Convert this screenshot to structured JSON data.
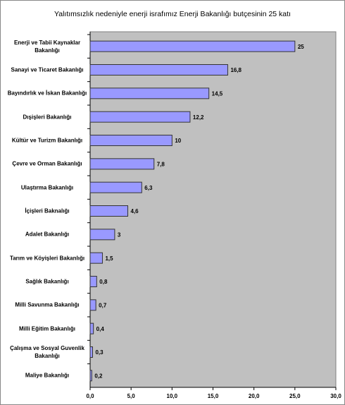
{
  "chart_data": {
    "type": "bar",
    "orientation": "horizontal",
    "title": "Yalıtımsızlık nedeniyle enerji israfımız Enerji Bakanlığı butçesinin 25 katı",
    "categories": [
      "Enerji ve Tabii Kaynaklar Bakanlığı",
      "Sanayi ve Ticaret Bakanlığı",
      "Bayındırlık ve İskan Bakanlığı",
      "Dışişleri Bakanlığı",
      "Kültür ve Turizm Bakanlığı",
      "Çevre ve Orman Bakanlığı",
      "Ulaştırma Bakanlığı",
      "İçişleri Baknalığı",
      "Adalet Bakanlığı",
      "Tarım ve Köyişleri Bakanlığı",
      "Sağlık Bakanlığı",
      "Milli Savunma Bakanlığı",
      "Milli Eğitim Bakanlığı",
      "Çalışma ve Sosyal Guvenlik Bakanlığı",
      "Maliye Bakanlığı"
    ],
    "values": [
      25,
      16.8,
      14.5,
      12.2,
      10,
      7.8,
      6.3,
      4.6,
      3,
      1.5,
      0.8,
      0.7,
      0.4,
      0.3,
      0.2
    ],
    "value_labels": [
      "25",
      "16,8",
      "14,5",
      "12,2",
      "10",
      "7,8",
      "6,3",
      "4,6",
      "3",
      "1,5",
      "0,8",
      "0,7",
      "0,4",
      "0,3",
      "0,2"
    ],
    "color": "#9999ff",
    "xlim": [
      0,
      30
    ],
    "xticks": [
      {
        "value": 0,
        "label": "0,0"
      },
      {
        "value": 5,
        "label": "5,0"
      },
      {
        "value": 10,
        "label": "10,0"
      },
      {
        "value": 15,
        "label": "15,0"
      },
      {
        "value": 20,
        "label": "20,0"
      },
      {
        "value": 25,
        "label": "25,0"
      },
      {
        "value": 30,
        "label": "30,0"
      }
    ]
  }
}
